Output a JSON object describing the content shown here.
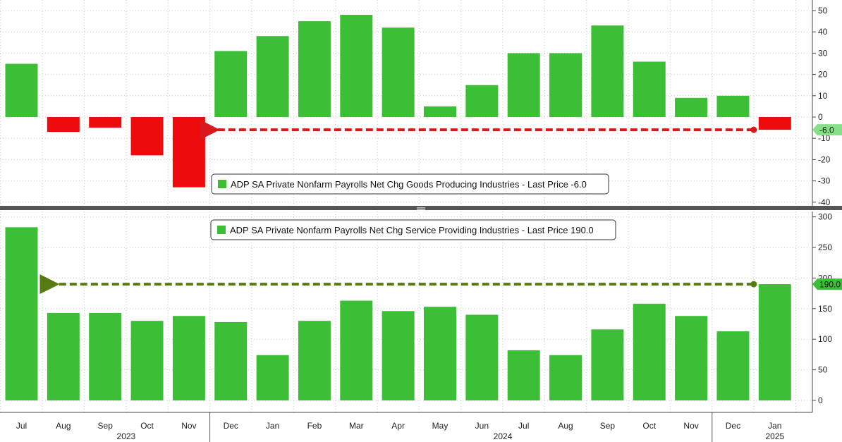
{
  "colors": {
    "positive": "#3cbf36",
    "negative": "#ee0b0b",
    "arrow_top": "#d8181c",
    "arrow_bottom": "#557b12",
    "grid": "#c9c9c9",
    "divider": "#555555"
  },
  "chart_data": [
    {
      "type": "bar",
      "legend": "ADP SA Private Nonfarm Payrolls Net Chg Goods Producing Industries - Last Price -6.0",
      "last_value_label": "-6.0",
      "categories": [
        "Jul",
        "Aug",
        "Sep",
        "Oct",
        "Nov",
        "Dec",
        "Jan",
        "Feb",
        "Mar",
        "Apr",
        "May",
        "Jun",
        "Jul",
        "Aug",
        "Sep",
        "Oct",
        "Nov",
        "Dec",
        "Jan"
      ],
      "values": [
        25,
        -7,
        -5,
        -18,
        -33,
        31,
        38,
        45,
        48,
        42,
        5,
        15,
        30,
        30,
        43,
        26,
        9,
        10,
        -6
      ],
      "ylim": [
        -40,
        50
      ],
      "yticks": [
        50,
        40,
        30,
        20,
        10,
        0,
        -10,
        -20,
        -30,
        -40
      ],
      "ytick_labels": [
        "50",
        "40",
        "30",
        "20",
        "10",
        "0",
        "-10",
        "-20",
        "-30",
        "-40"
      ],
      "arrow": {
        "from_index": 18,
        "to_index": 4,
        "value": -6,
        "direction": "left"
      },
      "grid": true,
      "legend_position": "bottom-center"
    },
    {
      "type": "bar",
      "legend": "ADP SA Private Nonfarm Payrolls Net Chg Service Providing Industries - Last Price 190.0",
      "last_value_label": "190.0",
      "categories": [
        "Jul",
        "Aug",
        "Sep",
        "Oct",
        "Nov",
        "Dec",
        "Jan",
        "Feb",
        "Mar",
        "Apr",
        "May",
        "Jun",
        "Jul",
        "Aug",
        "Sep",
        "Oct",
        "Nov",
        "Dec",
        "Jan"
      ],
      "values": [
        283,
        143,
        143,
        130,
        138,
        128,
        74,
        130,
        163,
        146,
        153,
        140,
        82,
        74,
        116,
        158,
        138,
        113,
        190
      ],
      "ylim": [
        0,
        300
      ],
      "yticks": [
        300,
        250,
        200,
        150,
        100,
        50,
        0
      ],
      "ytick_labels": [
        "300",
        "250",
        "200",
        "150",
        "100",
        "50",
        "0"
      ],
      "arrow": {
        "from_index": 18,
        "to_index": 0,
        "value": 190,
        "direction": "left"
      },
      "grid": true,
      "legend_position": "top-center"
    }
  ],
  "x_axis": {
    "month_labels": [
      "Jul",
      "Aug",
      "Sep",
      "Oct",
      "Nov",
      "Dec",
      "Jan",
      "Feb",
      "Mar",
      "Apr",
      "May",
      "Jun",
      "Jul",
      "Aug",
      "Sep",
      "Oct",
      "Nov",
      "Dec",
      "Jan"
    ],
    "year_labels": [
      {
        "label": "2023",
        "center_index": 2.5
      },
      {
        "label": "2024",
        "center_index": 11.5
      },
      {
        "label": "2025",
        "center_index": 18
      }
    ],
    "year_separator_indices": [
      5,
      17
    ]
  }
}
